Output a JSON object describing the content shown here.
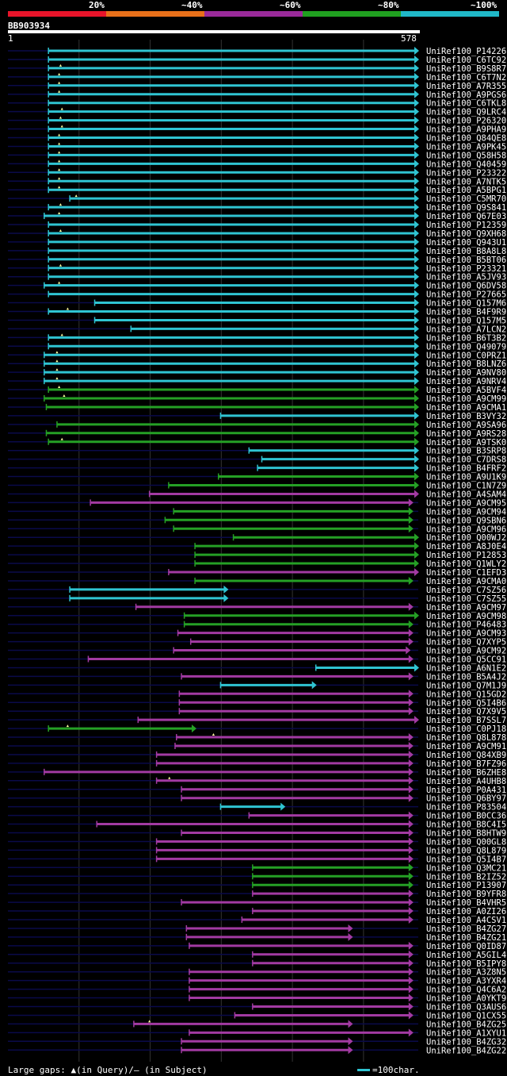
{
  "identity_scale": [
    {
      "label": "20%",
      "color": "#e8142a"
    },
    {
      "label": "~40%",
      "color": "#e8701a"
    },
    {
      "label": "~60%",
      "color": "#9a2a9a"
    },
    {
      "label": "~80%",
      "color": "#20a020"
    },
    {
      "label": "~100%",
      "color": "#20b8c8"
    }
  ],
  "query": {
    "id": "BB903934",
    "start": "1",
    "end": "578",
    "length": 578
  },
  "legend": {
    "text": "Large gaps: ▲(in Query)/— (in Subject)",
    "scale_text": "=100char."
  },
  "colors": {
    "cyan": "#2fc4d2",
    "green": "#25a025",
    "magenta": "#a23aa2",
    "dark": "#0a0a4a"
  },
  "hits": [
    {
      "name": "UniRef100_P14226",
      "s": 58,
      "e": 578,
      "c": "cyan"
    },
    {
      "name": "UniRef100_C6TC92",
      "s": 58,
      "e": 578,
      "c": "cyan"
    },
    {
      "name": "UniRef100_B9S8R7",
      "s": 58,
      "e": 578,
      "c": "cyan",
      "q": 75
    },
    {
      "name": "UniRef100_C6T7N2",
      "s": 58,
      "e": 578,
      "c": "cyan",
      "q": 73
    },
    {
      "name": "UniRef100_A7R355",
      "s": 58,
      "e": 578,
      "c": "cyan",
      "q": 73
    },
    {
      "name": "UniRef100_A9PGS6",
      "s": 58,
      "e": 578,
      "c": "cyan",
      "q": 73
    },
    {
      "name": "UniRef100_C6TKL8",
      "s": 58,
      "e": 578,
      "c": "cyan"
    },
    {
      "name": "UniRef100_Q9LRC4",
      "s": 58,
      "e": 578,
      "c": "cyan",
      "q": 77
    },
    {
      "name": "UniRef100_P26320",
      "s": 58,
      "e": 578,
      "c": "cyan",
      "q": 75
    },
    {
      "name": "UniRef100_A9PHA9",
      "s": 58,
      "e": 578,
      "c": "cyan",
      "q": 77
    },
    {
      "name": "UniRef100_Q84QE8",
      "s": 58,
      "e": 578,
      "c": "cyan",
      "q": 73
    },
    {
      "name": "UniRef100_A9PK45",
      "s": 58,
      "e": 578,
      "c": "cyan",
      "q": 73
    },
    {
      "name": "UniRef100_Q58H58",
      "s": 58,
      "e": 578,
      "c": "cyan",
      "q": 73
    },
    {
      "name": "UniRef100_Q40459",
      "s": 58,
      "e": 578,
      "c": "cyan",
      "q": 73
    },
    {
      "name": "UniRef100_P23322",
      "s": 58,
      "e": 578,
      "c": "cyan",
      "q": 73
    },
    {
      "name": "UniRef100_A7NTK5",
      "s": 58,
      "e": 578,
      "c": "cyan",
      "q": 73
    },
    {
      "name": "UniRef100_A5BPG1",
      "s": 58,
      "e": 578,
      "c": "cyan",
      "q": 73
    },
    {
      "name": "UniRef100_C5MR70",
      "s": 88,
      "e": 578,
      "c": "cyan",
      "q": 97
    },
    {
      "name": "UniRef100_Q9S841",
      "s": 58,
      "e": 578,
      "c": "cyan",
      "q": 75
    },
    {
      "name": "UniRef100_Q67E03",
      "s": 52,
      "e": 578,
      "c": "cyan",
      "q": 73
    },
    {
      "name": "UniRef100_P12359",
      "s": 58,
      "e": 578,
      "c": "cyan"
    },
    {
      "name": "UniRef100_Q9XH68",
      "s": 58,
      "e": 578,
      "c": "cyan",
      "q": 75
    },
    {
      "name": "UniRef100_Q943U1",
      "s": 58,
      "e": 578,
      "c": "cyan"
    },
    {
      "name": "UniRef100_B8A8L8",
      "s": 58,
      "e": 578,
      "c": "cyan"
    },
    {
      "name": "UniRef100_B5BT06",
      "s": 58,
      "e": 578,
      "c": "cyan"
    },
    {
      "name": "UniRef100_P23321",
      "s": 58,
      "e": 578,
      "c": "cyan",
      "q": 75
    },
    {
      "name": "UniRef100_A5JV93",
      "s": 58,
      "e": 578,
      "c": "cyan"
    },
    {
      "name": "UniRef100_Q6DV58",
      "s": 52,
      "e": 578,
      "c": "cyan",
      "q": 73
    },
    {
      "name": "UniRef100_P27665",
      "s": 58,
      "e": 578,
      "c": "cyan"
    },
    {
      "name": "UniRef100_Q157M6",
      "s": 123,
      "e": 578,
      "c": "cyan"
    },
    {
      "name": "UniRef100_B4F9R9",
      "s": 58,
      "e": 578,
      "c": "cyan",
      "q": 85
    },
    {
      "name": "UniRef100_Q157M5",
      "s": 123,
      "e": 578,
      "c": "cyan"
    },
    {
      "name": "UniRef100_A7LCN2",
      "s": 174,
      "e": 578,
      "c": "cyan"
    },
    {
      "name": "UniRef100_B6T3B2",
      "s": 58,
      "e": 578,
      "c": "cyan",
      "q": 77
    },
    {
      "name": "UniRef100_Q49079",
      "s": 58,
      "e": 578,
      "c": "cyan"
    },
    {
      "name": "UniRef100_C0PRZ1",
      "s": 52,
      "e": 578,
      "c": "cyan",
      "q": 70
    },
    {
      "name": "UniRef100_B8LNZ6",
      "s": 52,
      "e": 578,
      "c": "cyan",
      "q": 70
    },
    {
      "name": "UniRef100_A9NV80",
      "s": 52,
      "e": 578,
      "c": "cyan",
      "q": 70
    },
    {
      "name": "UniRef100_A9NRV4",
      "s": 52,
      "e": 578,
      "c": "cyan",
      "q": 70
    },
    {
      "name": "UniRef100_A5BVF4",
      "s": 58,
      "e": 578,
      "c": "green",
      "q": 73
    },
    {
      "name": "UniRef100_A9CM99",
      "s": 52,
      "e": 578,
      "c": "green",
      "q": 80
    },
    {
      "name": "UniRef100_A9CMA1",
      "s": 55,
      "e": 578,
      "c": "green"
    },
    {
      "name": "UniRef100_B3VY32",
      "s": 300,
      "e": 578,
      "c": "cyan"
    },
    {
      "name": "UniRef100_A9SA96",
      "s": 70,
      "e": 578,
      "c": "green"
    },
    {
      "name": "UniRef100_A9RS28",
      "s": 55,
      "e": 578,
      "c": "green"
    },
    {
      "name": "UniRef100_A9TSK0",
      "s": 58,
      "e": 578,
      "c": "green",
      "q": 77
    },
    {
      "name": "UniRef100_B3SRP8",
      "s": 340,
      "e": 578,
      "c": "cyan"
    },
    {
      "name": "UniRef100_C7DRS8",
      "s": 358,
      "e": 578,
      "c": "cyan"
    },
    {
      "name": "UniRef100_B4FRF2",
      "s": 352,
      "e": 578,
      "c": "cyan"
    },
    {
      "name": "UniRef100_A9U1K9",
      "s": 297,
      "e": 578,
      "c": "green"
    },
    {
      "name": "UniRef100_C1N7Z9",
      "s": 227,
      "e": 578,
      "c": "green"
    },
    {
      "name": "UniRef100_A4SAM4",
      "s": 200,
      "e": 578,
      "c": "magenta"
    },
    {
      "name": "UniRef100_A9CM95",
      "s": 117,
      "e": 570,
      "c": "magenta"
    },
    {
      "name": "UniRef100_A9CM94",
      "s": 234,
      "e": 570,
      "c": "green"
    },
    {
      "name": "UniRef100_Q9SBN6",
      "s": 222,
      "e": 570,
      "c": "green"
    },
    {
      "name": "UniRef100_A9CM96",
      "s": 234,
      "e": 570,
      "c": "green"
    },
    {
      "name": "UniRef100_Q00WJ2",
      "s": 318,
      "e": 578,
      "c": "green"
    },
    {
      "name": "UniRef100_A8J0E4",
      "s": 264,
      "e": 578,
      "c": "green"
    },
    {
      "name": "UniRef100_P12853",
      "s": 264,
      "e": 578,
      "c": "green"
    },
    {
      "name": "UniRef100_Q1WLY2",
      "s": 264,
      "e": 578,
      "c": "green"
    },
    {
      "name": "UniRef100_C1EFD3",
      "s": 227,
      "e": 578,
      "c": "magenta"
    },
    {
      "name": "UniRef100_A9CMA0",
      "s": 264,
      "e": 570,
      "c": "green"
    },
    {
      "name": "UniRef100_C7SZ56",
      "s": 88,
      "e": 310,
      "c": "cyan"
    },
    {
      "name": "UniRef100_C7SZ55",
      "s": 88,
      "e": 310,
      "c": "cyan"
    },
    {
      "name": "UniRef100_A9CM97",
      "s": 181,
      "e": 570,
      "c": "magenta"
    },
    {
      "name": "UniRef100_A9CM98",
      "s": 249,
      "e": 578,
      "c": "green"
    },
    {
      "name": "UniRef100_P46483",
      "s": 249,
      "e": 570,
      "c": "green"
    },
    {
      "name": "UniRef100_A9CM93",
      "s": 240,
      "e": 570,
      "c": "magenta"
    },
    {
      "name": "UniRef100_Q7XYP5",
      "s": 258,
      "e": 570,
      "c": "magenta"
    },
    {
      "name": "UniRef100_A9CM92",
      "s": 234,
      "e": 566,
      "c": "magenta"
    },
    {
      "name": "UniRef100_Q5CC91",
      "s": 114,
      "e": 570,
      "c": "magenta"
    },
    {
      "name": "UniRef100_A6N1E2",
      "s": 434,
      "e": 578,
      "c": "cyan"
    },
    {
      "name": "UniRef100_B5A4J2",
      "s": 245,
      "e": 570,
      "c": "magenta"
    },
    {
      "name": "UniRef100_Q7M1J9",
      "s": 300,
      "e": 434,
      "c": "cyan"
    },
    {
      "name": "UniRef100_Q15GD2",
      "s": 242,
      "e": 570,
      "c": "magenta"
    },
    {
      "name": "UniRef100_Q5I4B6",
      "s": 242,
      "e": 570,
      "c": "magenta"
    },
    {
      "name": "UniRef100_Q7X9V5",
      "s": 242,
      "e": 570,
      "c": "magenta"
    },
    {
      "name": "UniRef100_B7SSL7",
      "s": 184,
      "e": 578,
      "c": "magenta"
    },
    {
      "name": "UniRef100_C0PJ18",
      "s": 58,
      "e": 265,
      "c": "green",
      "q": 85
    },
    {
      "name": "UniRef100_Q8L878",
      "s": 238,
      "e": 570,
      "c": "magenta",
      "q": 290
    },
    {
      "name": "UniRef100_A9CM91",
      "s": 236,
      "e": 570,
      "c": "magenta"
    },
    {
      "name": "UniRef100_Q84XB9",
      "s": 210,
      "e": 570,
      "c": "magenta"
    },
    {
      "name": "UniRef100_B7FZ96",
      "s": 210,
      "e": 570,
      "c": "magenta"
    },
    {
      "name": "UniRef100_B6ZHE8",
      "s": 52,
      "e": 570,
      "c": "magenta"
    },
    {
      "name": "UniRef100_A4UHB8",
      "s": 210,
      "e": 570,
      "c": "magenta",
      "q": 228
    },
    {
      "name": "UniRef100_P0A431",
      "s": 245,
      "e": 570,
      "c": "magenta"
    },
    {
      "name": "UniRef100_Q6BY97",
      "s": 245,
      "e": 570,
      "c": "magenta"
    },
    {
      "name": "UniRef100_P83504",
      "s": 300,
      "e": 390,
      "c": "cyan"
    },
    {
      "name": "UniRef100_B0CC36",
      "s": 340,
      "e": 570,
      "c": "magenta"
    },
    {
      "name": "UniRef100_B8C4I5",
      "s": 126,
      "e": 570,
      "c": "magenta"
    },
    {
      "name": "UniRef100_B8HTW9",
      "s": 245,
      "e": 570,
      "c": "magenta"
    },
    {
      "name": "UniRef100_Q00GL8",
      "s": 210,
      "e": 570,
      "c": "magenta"
    },
    {
      "name": "UniRef100_Q8L879",
      "s": 210,
      "e": 570,
      "c": "magenta"
    },
    {
      "name": "UniRef100_Q5I4B7",
      "s": 210,
      "e": 570,
      "c": "magenta"
    },
    {
      "name": "UniRef100_Q3MC21",
      "s": 345,
      "e": 570,
      "c": "green"
    },
    {
      "name": "UniRef100_B2IZ52",
      "s": 345,
      "e": 570,
      "c": "green"
    },
    {
      "name": "UniRef100_P13907",
      "s": 345,
      "e": 570,
      "c": "green"
    },
    {
      "name": "UniRef100_B9YFR8",
      "s": 345,
      "e": 570,
      "c": "magenta"
    },
    {
      "name": "UniRef100_B4VHR5",
      "s": 245,
      "e": 570,
      "c": "magenta"
    },
    {
      "name": "UniRef100_A0ZI26",
      "s": 345,
      "e": 570,
      "c": "magenta"
    },
    {
      "name": "UniRef100_A4CSV1",
      "s": 330,
      "e": 570,
      "c": "magenta"
    },
    {
      "name": "UniRef100_B4ZG27",
      "s": 252,
      "e": 485,
      "c": "magenta"
    },
    {
      "name": "UniRef100_B4ZG21",
      "s": 252,
      "e": 485,
      "c": "magenta"
    },
    {
      "name": "UniRef100_Q0ID87",
      "s": 256,
      "e": 570,
      "c": "magenta"
    },
    {
      "name": "UniRef100_A5GIL4",
      "s": 345,
      "e": 570,
      "c": "magenta"
    },
    {
      "name": "UniRef100_B5IPY8",
      "s": 345,
      "e": 570,
      "c": "magenta"
    },
    {
      "name": "UniRef100_A3Z8N5",
      "s": 256,
      "e": 570,
      "c": "magenta"
    },
    {
      "name": "UniRef100_A3YXR4",
      "s": 256,
      "e": 570,
      "c": "magenta"
    },
    {
      "name": "UniRef100_Q4C6A2",
      "s": 256,
      "e": 570,
      "c": "magenta"
    },
    {
      "name": "UniRef100_A0YKT9",
      "s": 256,
      "e": 570,
      "c": "magenta"
    },
    {
      "name": "UniRef100_Q3AUS6",
      "s": 345,
      "e": 570,
      "c": "magenta"
    },
    {
      "name": "UniRef100_Q1CX55",
      "s": 320,
      "e": 570,
      "c": "magenta"
    },
    {
      "name": "UniRef100_B4ZG25",
      "s": 178,
      "e": 485,
      "c": "magenta",
      "q": 200
    },
    {
      "name": "UniRef100_A1XYU1",
      "s": 256,
      "e": 570,
      "c": "magenta"
    },
    {
      "name": "UniRef100_B4ZG32",
      "s": 245,
      "e": 485,
      "c": "magenta"
    },
    {
      "name": "UniRef100_B4ZG22",
      "s": 245,
      "e": 485,
      "c": "magenta"
    }
  ]
}
